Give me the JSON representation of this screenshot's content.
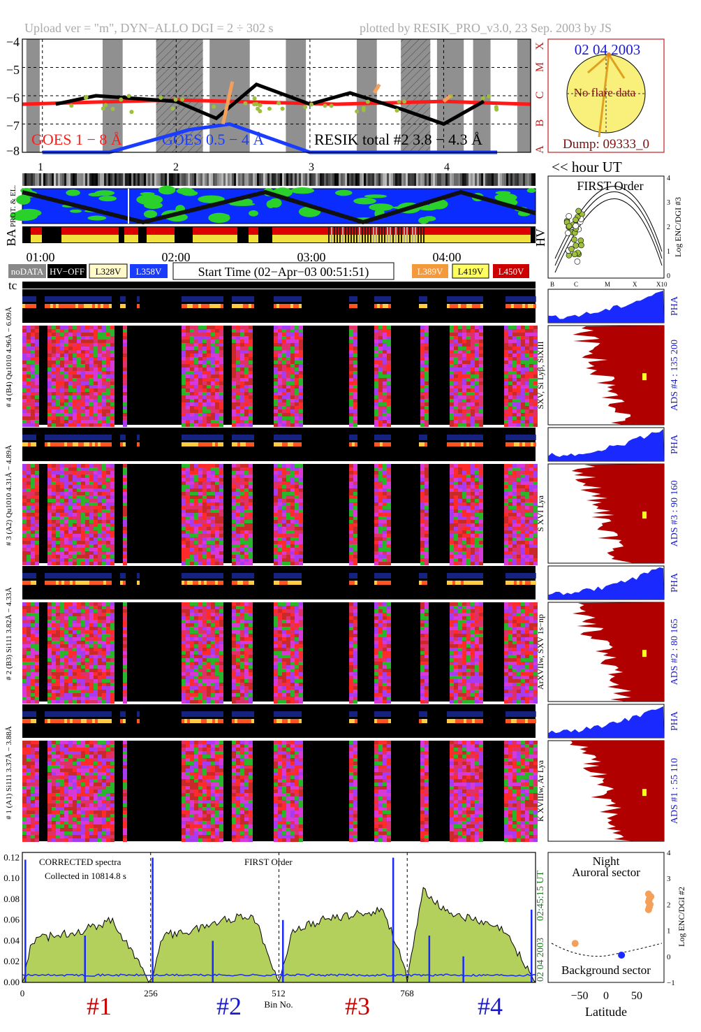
{
  "header": {
    "upload": "Upload ver = \"m\", DYN−ALLO DGI =   2 ÷ 302 s",
    "plotted": "plotted by RESIK_PRO_v3.0, 23 Sep. 2003 by JS"
  },
  "goes": {
    "yticks": [
      "−4",
      "−5",
      "−6",
      "−7",
      "−8"
    ],
    "class_letters": [
      "X",
      "M",
      "C",
      "B",
      "A"
    ],
    "legend_goes18": "GOES 1 − 8 Å",
    "legend_goes05": "GOES 0.5 − 4 Å",
    "legend_resik": "RESIK total #2  3.8 − 4.3 Å",
    "hour_ticks": [
      "1",
      "2",
      "3",
      "4"
    ],
    "colors": {
      "goes18": "#ff1a1a",
      "goes05": "#1a3cff",
      "resik": "#000000",
      "green": "#9dbf3c",
      "orange": "#f5a05a"
    }
  },
  "sun": {
    "date": "02 04 2003",
    "no_flare": "No flare data",
    "dump": "Dump: 09333_0",
    "hour_ut": "<< hour UT"
  },
  "orbit": {
    "label_prot": "PROT. & EL.",
    "label_ba": "BA",
    "label_hv": "HV",
    "time_ticks": [
      "01:00",
      "02:00",
      "03:00",
      "04:00"
    ]
  },
  "legend": {
    "nodata": "noDATA",
    "hvoff": "HV−OFF",
    "l328": "L328V",
    "l358": "L358V",
    "start_time": "Start Time (02−Apr−03 00:51:51)",
    "l389": "L389V",
    "l419": "L419V",
    "l450": "L450V",
    "tc": "tc"
  },
  "first_order": {
    "title": "FIRST Order",
    "ylabel": "Log ENC/DGI #3",
    "yticks": [
      "0",
      "1",
      "2",
      "3",
      "4"
    ],
    "xticks": [
      "B",
      "C",
      "M",
      "X",
      "X10"
    ]
  },
  "channels": [
    {
      "left_label": "# 4 (B4) Qu1010 4.96Å − 6.09Å",
      "right_label": "SXV, Si Lyβ, SiXIII",
      "ads_label": "ADS #4 :   135 200",
      "pha": "PHA"
    },
    {
      "left_label": "# 3 (A2) Qu1010 4.31Å − 4.89Å",
      "right_label": "S XVI Lya",
      "ads_label": "ADS #3 :    90 160",
      "pha": "PHA"
    },
    {
      "left_label": "# 2 (B3) Si111 3.82Å − 4.33Å",
      "right_label": "ArXVIIw, SXV 1s−np",
      "ads_label": "ADS #2 :    80 165",
      "pha": "PHA"
    },
    {
      "left_label": "# 1 (A1) Si111 3.37Å − 3.88Å",
      "right_label": "K XVIIIw, Ar Lya",
      "ads_label": "ADS #1 :    55 110",
      "pha": "PHA"
    }
  ],
  "spectrum": {
    "corrected": "CORRECTED spectra",
    "collected": "Collected in 10814.8 s",
    "first_order": "FIRST Order",
    "timestamp": "02 04 2003",
    "time": "02:45:15 UT",
    "xlabel": "Bin No.",
    "xticks": [
      "0",
      "256",
      "512",
      "768"
    ],
    "yticks": [
      "0.00",
      "0.02",
      "0.04",
      "0.06",
      "0.08",
      "0.10",
      "0.12"
    ],
    "channel_labels": [
      "#1",
      "#2",
      "#3",
      "#4"
    ],
    "channel_colors": [
      "#cc0000",
      "#1a1acc",
      "#cc0000",
      "#1a1acc"
    ]
  },
  "latitude": {
    "night": "Night",
    "auroral": "Auroral sector",
    "background": "Background sector",
    "xlabel": "Latitude",
    "ylabel": "Log ENC/DGI #2",
    "xticks": [
      "−50",
      "0",
      "50"
    ],
    "yticks": [
      "−1",
      "0",
      "1",
      "2",
      "3",
      "4"
    ]
  },
  "chart_data": [
    {
      "type": "line",
      "ylabel": "",
      "ylim": [
        -8,
        -4
      ],
      "x_unit": "hour UT",
      "xlim": [
        0.85,
        4.65
      ],
      "series": [
        {
          "name": "GOES 1 − 8 Å",
          "x": [
            0.85,
            1.2,
            1.6,
            2.0,
            2.4,
            2.8,
            3.2,
            3.6,
            4.0,
            4.3,
            4.65
          ],
          "values": [
            -6.3,
            -6.25,
            -6.2,
            -6.15,
            -6.2,
            -6.25,
            -6.3,
            -6.25,
            -6.2,
            -6.25,
            -6.3
          ]
        },
        {
          "name": "GOES 0.5 − 4 Å",
          "x": [
            1.0,
            1.5,
            2.1,
            2.4,
            3.0,
            3.6,
            4.0,
            4.4
          ],
          "values": [
            -8.0,
            -8.1,
            -7.2,
            -7.0,
            -8.1,
            -8.0,
            -8.1,
            -8.0
          ]
        },
        {
          "name": "RESIK total #2  3.8 − 4.3 Å",
          "x": [
            1.1,
            1.4,
            2.0,
            2.3,
            2.6,
            3.0,
            3.3,
            3.7,
            4.0,
            4.3
          ],
          "values": [
            -6.3,
            -6.0,
            -6.2,
            -6.8,
            -5.6,
            -6.3,
            -5.9,
            -6.5,
            -7.0,
            -6.2
          ]
        }
      ]
    },
    {
      "type": "scatter",
      "title": "FIRST Order",
      "ylabel": "Log ENC/DGI #3",
      "xticks": [
        "B",
        "C",
        "M",
        "X",
        "X10"
      ],
      "ylim": [
        0,
        4
      ]
    },
    {
      "type": "area",
      "title": "",
      "xlabel": "Bin No.",
      "xlim": [
        0,
        1024
      ],
      "ylim": [
        0,
        0.125
      ],
      "series": [
        {
          "name": "",
          "x": [
            0,
            20,
            60,
            120,
            180,
            230,
            256,
            280,
            340,
            400,
            460,
            490,
            512,
            540,
            600,
            660,
            720,
            760,
            768,
            800,
            840,
            900,
            960,
            1000,
            1024
          ],
          "values": [
            0.0,
            0.04,
            0.045,
            0.05,
            0.06,
            0.02,
            0.0,
            0.045,
            0.05,
            0.06,
            0.065,
            0.03,
            0.0,
            0.05,
            0.06,
            0.065,
            0.07,
            0.02,
            0.0,
            0.09,
            0.07,
            0.06,
            0.05,
            0.02,
            0.0
          ]
        },
        {
          "name": "",
          "x": [
            0,
            256,
            512,
            768,
            1024
          ],
          "values": [
            0.008,
            0.008,
            0.007,
            0.006,
            0.004
          ]
        }
      ]
    },
    {
      "type": "scatter",
      "xlabel": "Latitude",
      "ylabel": "Log ENC/DGI #2",
      "xlim": [
        -75,
        75
      ],
      "ylim": [
        -1,
        4
      ],
      "series": [
        {
          "name": "",
          "x": [
            -40,
            55,
            56,
            57,
            55,
            58,
            56,
            55
          ],
          "values": [
            0.5,
            2.4,
            2.2,
            2.0,
            1.8,
            2.3,
            1.9,
            2.1
          ]
        }
      ]
    }
  ]
}
